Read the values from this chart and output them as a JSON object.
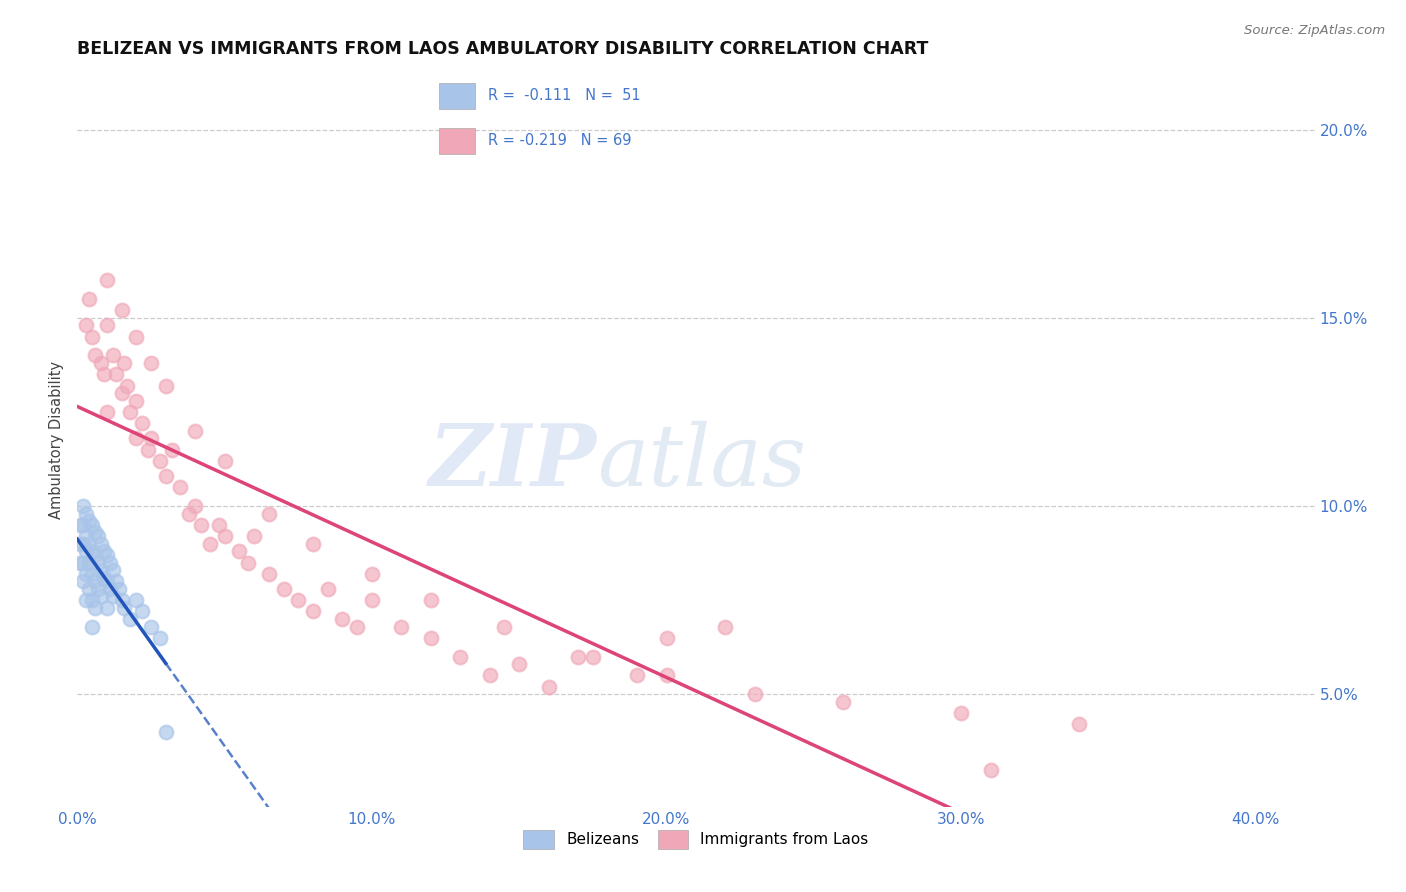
{
  "title": "BELIZEAN VS IMMIGRANTS FROM LAOS AMBULATORY DISABILITY CORRELATION CHART",
  "source": "Source: ZipAtlas.com",
  "ylabel": "Ambulatory Disability",
  "xtick_labels": [
    "0.0%",
    "10.0%",
    "20.0%",
    "30.0%",
    "40.0%"
  ],
  "xtick_vals": [
    0.0,
    0.1,
    0.2,
    0.3,
    0.4
  ],
  "ytick_labels_right": [
    "5.0%",
    "10.0%",
    "15.0%",
    "20.0%"
  ],
  "ytick_vals": [
    0.05,
    0.1,
    0.15,
    0.2
  ],
  "belizean_color": "#a8c4e8",
  "laos_color": "#f0a8b8",
  "belizean_line_color": "#2255bb",
  "laos_line_color": "#dd4477",
  "xlim": [
    0.0,
    0.42
  ],
  "ylim": [
    0.02,
    0.215
  ],
  "legend_text_1": "R=  -0.111  N= 51",
  "legend_text_2": "R= -0.219  N= 69",
  "watermark_zip": "ZIP",
  "watermark_atlas": "atlas",
  "belizean_x": [
    0.001,
    0.001,
    0.001,
    0.002,
    0.002,
    0.002,
    0.002,
    0.002,
    0.003,
    0.003,
    0.003,
    0.003,
    0.003,
    0.004,
    0.004,
    0.004,
    0.004,
    0.005,
    0.005,
    0.005,
    0.005,
    0.005,
    0.006,
    0.006,
    0.006,
    0.006,
    0.007,
    0.007,
    0.007,
    0.008,
    0.008,
    0.008,
    0.009,
    0.009,
    0.01,
    0.01,
    0.01,
    0.011,
    0.011,
    0.012,
    0.012,
    0.013,
    0.014,
    0.015,
    0.016,
    0.018,
    0.02,
    0.022,
    0.025,
    0.028,
    0.03
  ],
  "belizean_y": [
    0.095,
    0.09,
    0.085,
    0.1,
    0.095,
    0.09,
    0.085,
    0.08,
    0.098,
    0.092,
    0.088,
    0.082,
    0.075,
    0.096,
    0.09,
    0.085,
    0.078,
    0.095,
    0.088,
    0.082,
    0.075,
    0.068,
    0.093,
    0.087,
    0.08,
    0.073,
    0.092,
    0.085,
    0.078,
    0.09,
    0.083,
    0.076,
    0.088,
    0.081,
    0.087,
    0.08,
    0.073,
    0.085,
    0.078,
    0.083,
    0.076,
    0.08,
    0.078,
    0.075,
    0.073,
    0.07,
    0.075,
    0.072,
    0.068,
    0.065,
    0.04
  ],
  "laos_x": [
    0.003,
    0.004,
    0.005,
    0.006,
    0.008,
    0.009,
    0.01,
    0.01,
    0.012,
    0.013,
    0.015,
    0.016,
    0.017,
    0.018,
    0.02,
    0.02,
    0.022,
    0.024,
    0.025,
    0.028,
    0.03,
    0.032,
    0.035,
    0.038,
    0.04,
    0.042,
    0.045,
    0.048,
    0.05,
    0.055,
    0.058,
    0.06,
    0.065,
    0.07,
    0.075,
    0.08,
    0.085,
    0.09,
    0.095,
    0.1,
    0.11,
    0.12,
    0.13,
    0.14,
    0.15,
    0.16,
    0.175,
    0.19,
    0.2,
    0.22,
    0.01,
    0.015,
    0.02,
    0.025,
    0.03,
    0.04,
    0.05,
    0.065,
    0.08,
    0.1,
    0.12,
    0.145,
    0.17,
    0.2,
    0.23,
    0.26,
    0.3,
    0.34,
    0.31
  ],
  "laos_y": [
    0.148,
    0.155,
    0.145,
    0.14,
    0.138,
    0.135,
    0.148,
    0.125,
    0.14,
    0.135,
    0.13,
    0.138,
    0.132,
    0.125,
    0.128,
    0.118,
    0.122,
    0.115,
    0.118,
    0.112,
    0.108,
    0.115,
    0.105,
    0.098,
    0.1,
    0.095,
    0.09,
    0.095,
    0.092,
    0.088,
    0.085,
    0.092,
    0.082,
    0.078,
    0.075,
    0.072,
    0.078,
    0.07,
    0.068,
    0.075,
    0.068,
    0.065,
    0.06,
    0.055,
    0.058,
    0.052,
    0.06,
    0.055,
    0.065,
    0.068,
    0.16,
    0.152,
    0.145,
    0.138,
    0.132,
    0.12,
    0.112,
    0.098,
    0.09,
    0.082,
    0.075,
    0.068,
    0.06,
    0.055,
    0.05,
    0.048,
    0.045,
    0.042,
    0.03
  ]
}
